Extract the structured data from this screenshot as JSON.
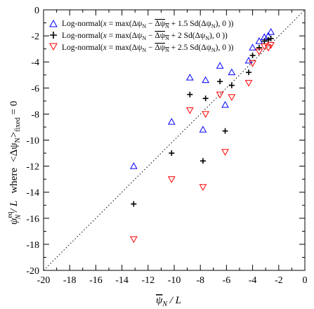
{
  "chart_data": {
    "type": "scatter",
    "xlabel": "ψ̄N / L",
    "ylabel": "ψNeq / L  where  <ΔψN>fixed = 0",
    "xlim": [
      -20,
      0
    ],
    "ylim": [
      -20,
      0
    ],
    "x_ticks": [
      -20,
      -18,
      -16,
      -14,
      -12,
      -10,
      -8,
      -6,
      -4,
      -2,
      0
    ],
    "y_ticks": [
      -20,
      -18,
      -16,
      -14,
      -12,
      -10,
      -8,
      -6,
      -4,
      -2,
      0
    ],
    "x_tick_labels": [
      "-20",
      "-18",
      "-16",
      "-14",
      "-12",
      "-10",
      "-8",
      "-6",
      "-4",
      "-2",
      "0"
    ],
    "y_tick_labels": [
      "-20",
      "-18",
      "-16",
      "-14",
      "-12",
      "-10",
      "-8",
      "-6",
      "-4",
      "-2",
      "0"
    ],
    "reference_line": {
      "style": "dotted",
      "from": [
        -20,
        -20
      ],
      "to": [
        0,
        0
      ]
    },
    "legend_position": "top-left",
    "series": [
      {
        "name": "Log-normal(x = max(ΔψN − ΔψN + 1.5 Sd(ΔψN), 0 ))",
        "marker": "triangle-up",
        "color": "#0000ff",
        "x": [
          -13.1,
          -10.2,
          -8.8,
          -7.8,
          -7.6,
          -6.5,
          -6.1,
          -5.6,
          -4.3,
          -4.0,
          -3.5,
          -3.1,
          -2.8,
          -2.6
        ],
        "y": [
          -12.0,
          -8.6,
          -5.2,
          -9.2,
          -5.4,
          -4.3,
          -7.3,
          -4.8,
          -3.9,
          -2.9,
          -2.4,
          -2.1,
          -2.0,
          -1.7
        ]
      },
      {
        "name": "Log-normal(x = max(ΔψN − ΔψN + 2   Sd(ΔψN), 0 ))",
        "marker": "plus",
        "color": "#000000",
        "x": [
          -13.1,
          -10.2,
          -8.8,
          -7.8,
          -7.6,
          -6.5,
          -6.1,
          -5.6,
          -4.3,
          -4.0,
          -3.5,
          -3.1,
          -2.8,
          -2.6
        ],
        "y": [
          -14.9,
          -11.0,
          -6.5,
          -11.6,
          -6.8,
          -5.5,
          -9.3,
          -5.8,
          -4.8,
          -3.5,
          -2.9,
          -2.4,
          -2.3,
          -2.2
        ]
      },
      {
        "name": "Log-normal(x = max(ΔψN − ΔψN + 2.5 Sd(ΔψN), 0 ))",
        "marker": "triangle-down",
        "color": "#ff0000",
        "x": [
          -13.1,
          -10.2,
          -8.8,
          -7.8,
          -7.6,
          -6.5,
          -6.1,
          -5.6,
          -4.3,
          -4.0,
          -3.5,
          -3.1,
          -2.8,
          -2.6
        ],
        "y": [
          -17.6,
          -13.0,
          -7.7,
          -13.6,
          -8.0,
          -6.5,
          -10.9,
          -6.7,
          -5.6,
          -4.1,
          -3.2,
          -2.8,
          -2.9,
          -2.7
        ]
      }
    ]
  }
}
